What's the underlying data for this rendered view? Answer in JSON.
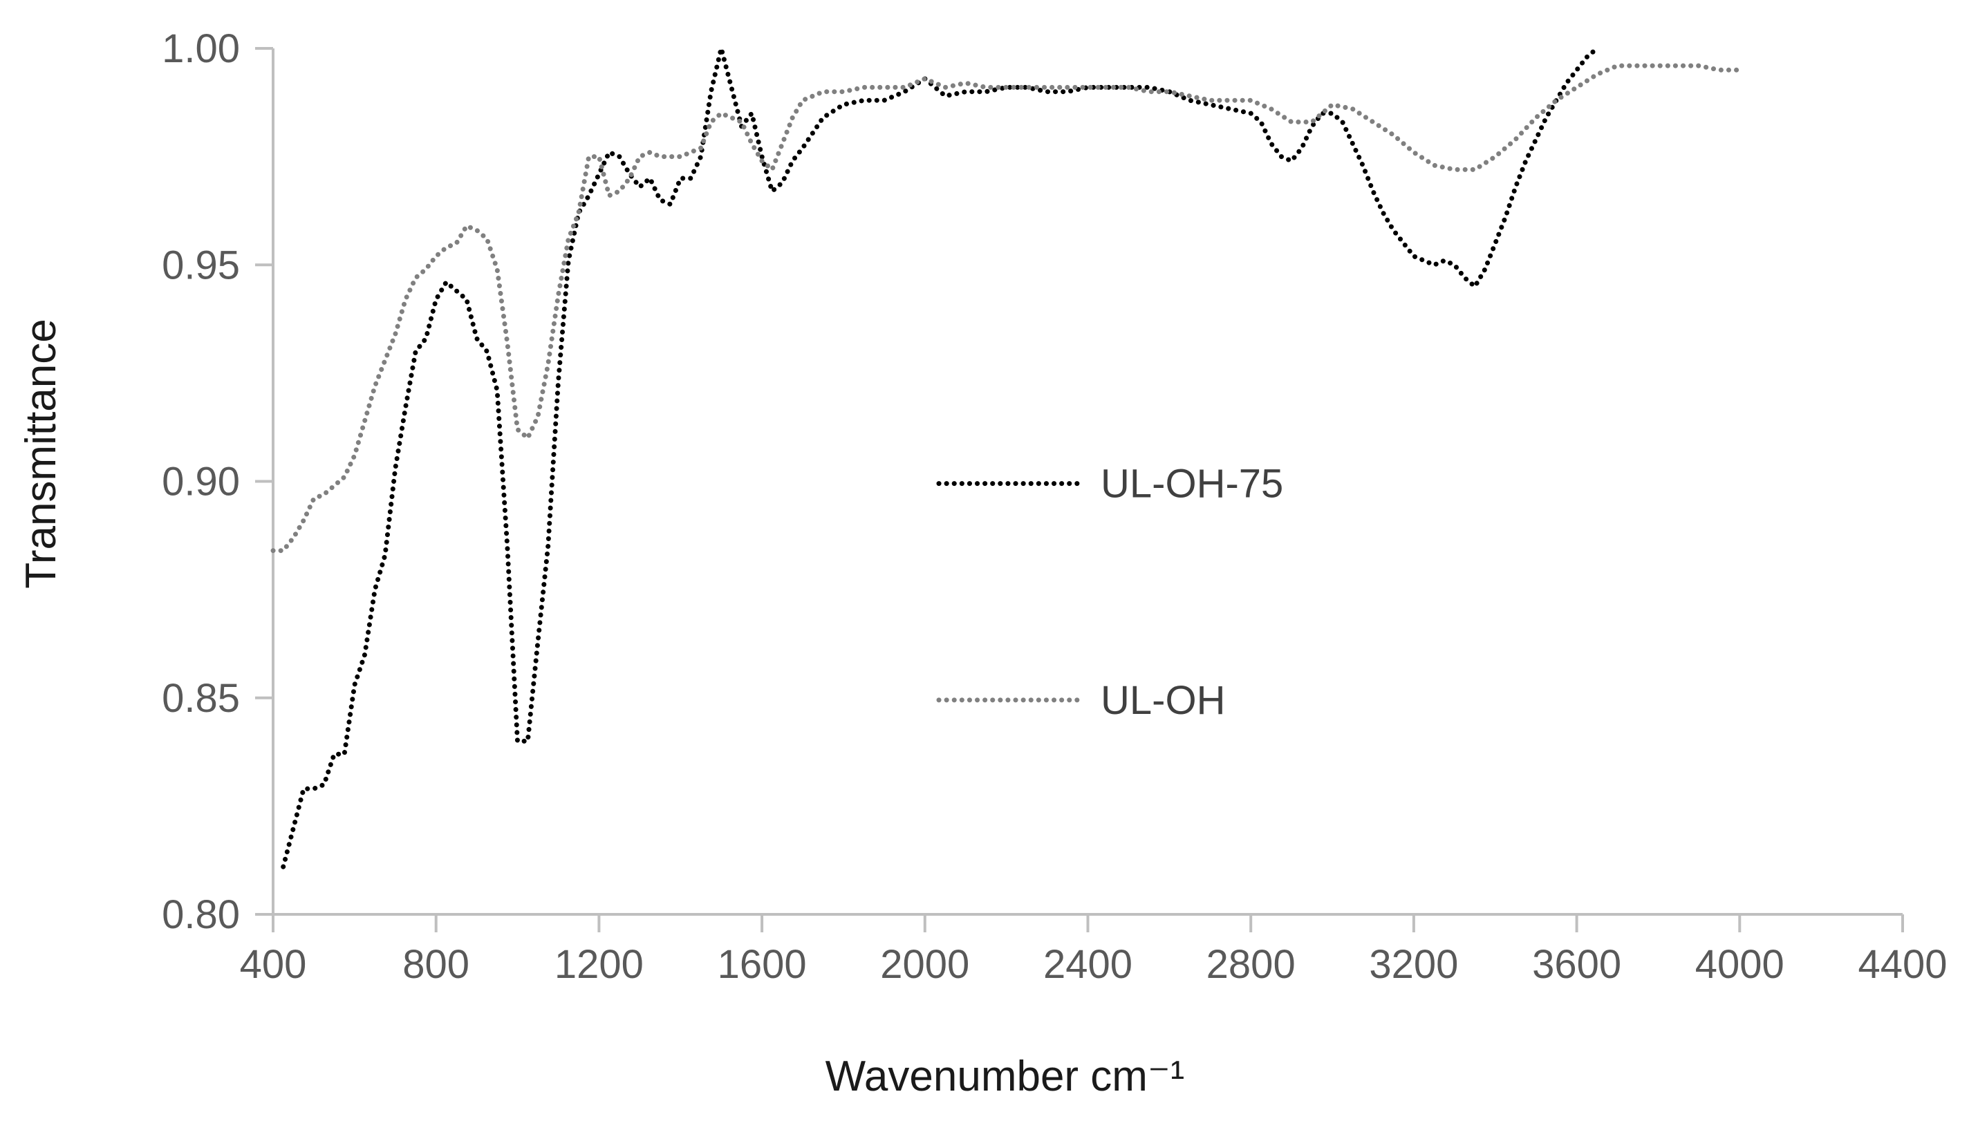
{
  "chart_data": {
    "type": "line",
    "xlabel": "Wavenumber cm⁻¹",
    "ylabel": "Transmittance",
    "xlim": [
      400,
      4400
    ],
    "ylim": [
      0.8,
      1.0
    ],
    "x_ticks": [
      400,
      800,
      1200,
      1600,
      2000,
      2400,
      2800,
      3200,
      3600,
      4000,
      4400
    ],
    "x_tick_labels": [
      "400",
      "800",
      "1200",
      "1600",
      "2000",
      "2400",
      "2800",
      "3200",
      "3600",
      "4000",
      "4400"
    ],
    "y_ticks": [
      0.8,
      0.85,
      0.9,
      0.95,
      1.0
    ],
    "y_tick_labels": [
      "0.80",
      "0.85",
      "0.90",
      "0.95",
      "1.00"
    ],
    "grid": false,
    "legend_position": "center",
    "series": [
      {
        "name": "UL-OH-75",
        "color": "#000000",
        "style": "dotted",
        "points": [
          [
            425,
            0.811
          ],
          [
            450,
            0.82
          ],
          [
            475,
            0.829
          ],
          [
            500,
            0.829
          ],
          [
            525,
            0.83
          ],
          [
            550,
            0.837
          ],
          [
            575,
            0.837
          ],
          [
            600,
            0.853
          ],
          [
            625,
            0.86
          ],
          [
            650,
            0.875
          ],
          [
            675,
            0.883
          ],
          [
            700,
            0.903
          ],
          [
            725,
            0.917
          ],
          [
            750,
            0.93
          ],
          [
            775,
            0.933
          ],
          [
            800,
            0.942
          ],
          [
            825,
            0.946
          ],
          [
            850,
            0.944
          ],
          [
            875,
            0.942
          ],
          [
            900,
            0.933
          ],
          [
            925,
            0.93
          ],
          [
            950,
            0.921
          ],
          [
            975,
            0.885
          ],
          [
            1000,
            0.84
          ],
          [
            1025,
            0.84
          ],
          [
            1050,
            0.863
          ],
          [
            1075,
            0.885
          ],
          [
            1100,
            0.923
          ],
          [
            1125,
            0.951
          ],
          [
            1150,
            0.962
          ],
          [
            1175,
            0.966
          ],
          [
            1200,
            0.971
          ],
          [
            1225,
            0.976
          ],
          [
            1250,
            0.975
          ],
          [
            1275,
            0.971
          ],
          [
            1300,
            0.968
          ],
          [
            1325,
            0.97
          ],
          [
            1350,
            0.965
          ],
          [
            1375,
            0.964
          ],
          [
            1400,
            0.97
          ],
          [
            1425,
            0.97
          ],
          [
            1450,
            0.975
          ],
          [
            1475,
            0.99
          ],
          [
            1500,
            1.0
          ],
          [
            1525,
            0.991
          ],
          [
            1550,
            0.982
          ],
          [
            1575,
            0.985
          ],
          [
            1600,
            0.975
          ],
          [
            1625,
            0.967
          ],
          [
            1650,
            0.969
          ],
          [
            1675,
            0.974
          ],
          [
            1700,
            0.977
          ],
          [
            1750,
            0.984
          ],
          [
            1800,
            0.987
          ],
          [
            1850,
            0.988
          ],
          [
            1900,
            0.988
          ],
          [
            1950,
            0.99
          ],
          [
            2000,
            0.993
          ],
          [
            2050,
            0.989
          ],
          [
            2100,
            0.99
          ],
          [
            2150,
            0.99
          ],
          [
            2200,
            0.991
          ],
          [
            2250,
            0.991
          ],
          [
            2300,
            0.99
          ],
          [
            2350,
            0.99
          ],
          [
            2400,
            0.991
          ],
          [
            2450,
            0.991
          ],
          [
            2500,
            0.991
          ],
          [
            2550,
            0.991
          ],
          [
            2600,
            0.99
          ],
          [
            2650,
            0.988
          ],
          [
            2700,
            0.987
          ],
          [
            2750,
            0.986
          ],
          [
            2800,
            0.985
          ],
          [
            2825,
            0.983
          ],
          [
            2850,
            0.978
          ],
          [
            2875,
            0.975
          ],
          [
            2900,
            0.974
          ],
          [
            2925,
            0.977
          ],
          [
            2950,
            0.982
          ],
          [
            2975,
            0.985
          ],
          [
            3000,
            0.985
          ],
          [
            3025,
            0.983
          ],
          [
            3050,
            0.978
          ],
          [
            3075,
            0.973
          ],
          [
            3100,
            0.967
          ],
          [
            3125,
            0.962
          ],
          [
            3150,
            0.958
          ],
          [
            3175,
            0.955
          ],
          [
            3200,
            0.952
          ],
          [
            3225,
            0.951
          ],
          [
            3250,
            0.95
          ],
          [
            3275,
            0.951
          ],
          [
            3300,
            0.95
          ],
          [
            3325,
            0.947
          ],
          [
            3350,
            0.945
          ],
          [
            3375,
            0.949
          ],
          [
            3400,
            0.955
          ],
          [
            3425,
            0.961
          ],
          [
            3450,
            0.968
          ],
          [
            3475,
            0.974
          ],
          [
            3500,
            0.979
          ],
          [
            3525,
            0.984
          ],
          [
            3550,
            0.988
          ],
          [
            3575,
            0.992
          ],
          [
            3600,
            0.995
          ],
          [
            3625,
            0.998
          ],
          [
            3650,
            1.0
          ]
        ]
      },
      {
        "name": "UL-OH",
        "color": "#808080",
        "style": "dotted",
        "points": [
          [
            400,
            0.884
          ],
          [
            425,
            0.884
          ],
          [
            450,
            0.887
          ],
          [
            475,
            0.891
          ],
          [
            500,
            0.896
          ],
          [
            525,
            0.897
          ],
          [
            550,
            0.899
          ],
          [
            575,
            0.901
          ],
          [
            600,
            0.906
          ],
          [
            625,
            0.914
          ],
          [
            650,
            0.922
          ],
          [
            675,
            0.928
          ],
          [
            700,
            0.934
          ],
          [
            725,
            0.942
          ],
          [
            750,
            0.947
          ],
          [
            775,
            0.949
          ],
          [
            800,
            0.952
          ],
          [
            825,
            0.954
          ],
          [
            850,
            0.955
          ],
          [
            875,
            0.959
          ],
          [
            900,
            0.958
          ],
          [
            925,
            0.956
          ],
          [
            950,
            0.949
          ],
          [
            975,
            0.932
          ],
          [
            1000,
            0.912
          ],
          [
            1025,
            0.91
          ],
          [
            1050,
            0.915
          ],
          [
            1075,
            0.927
          ],
          [
            1100,
            0.943
          ],
          [
            1125,
            0.956
          ],
          [
            1150,
            0.962
          ],
          [
            1175,
            0.975
          ],
          [
            1200,
            0.975
          ],
          [
            1225,
            0.966
          ],
          [
            1250,
            0.967
          ],
          [
            1275,
            0.97
          ],
          [
            1300,
            0.975
          ],
          [
            1325,
            0.976
          ],
          [
            1350,
            0.975
          ],
          [
            1400,
            0.975
          ],
          [
            1450,
            0.977
          ],
          [
            1475,
            0.983
          ],
          [
            1500,
            0.985
          ],
          [
            1525,
            0.984
          ],
          [
            1550,
            0.983
          ],
          [
            1575,
            0.978
          ],
          [
            1600,
            0.974
          ],
          [
            1625,
            0.972
          ],
          [
            1650,
            0.978
          ],
          [
            1675,
            0.984
          ],
          [
            1700,
            0.988
          ],
          [
            1750,
            0.99
          ],
          [
            1800,
            0.99
          ],
          [
            1850,
            0.991
          ],
          [
            1900,
            0.991
          ],
          [
            1950,
            0.991
          ],
          [
            2000,
            0.993
          ],
          [
            2050,
            0.991
          ],
          [
            2100,
            0.992
          ],
          [
            2150,
            0.991
          ],
          [
            2200,
            0.991
          ],
          [
            2250,
            0.991
          ],
          [
            2300,
            0.991
          ],
          [
            2350,
            0.991
          ],
          [
            2400,
            0.991
          ],
          [
            2450,
            0.991
          ],
          [
            2500,
            0.991
          ],
          [
            2550,
            0.99
          ],
          [
            2600,
            0.99
          ],
          [
            2650,
            0.989
          ],
          [
            2700,
            0.988
          ],
          [
            2750,
            0.988
          ],
          [
            2800,
            0.988
          ],
          [
            2850,
            0.986
          ],
          [
            2900,
            0.983
          ],
          [
            2950,
            0.983
          ],
          [
            3000,
            0.987
          ],
          [
            3050,
            0.986
          ],
          [
            3100,
            0.983
          ],
          [
            3150,
            0.98
          ],
          [
            3200,
            0.976
          ],
          [
            3250,
            0.973
          ],
          [
            3300,
            0.972
          ],
          [
            3350,
            0.972
          ],
          [
            3400,
            0.975
          ],
          [
            3450,
            0.979
          ],
          [
            3500,
            0.984
          ],
          [
            3550,
            0.988
          ],
          [
            3600,
            0.991
          ],
          [
            3650,
            0.994
          ],
          [
            3700,
            0.996
          ],
          [
            3750,
            0.996
          ],
          [
            3800,
            0.996
          ],
          [
            3850,
            0.996
          ],
          [
            3900,
            0.996
          ],
          [
            3950,
            0.995
          ],
          [
            4000,
            0.995
          ]
        ]
      }
    ]
  }
}
